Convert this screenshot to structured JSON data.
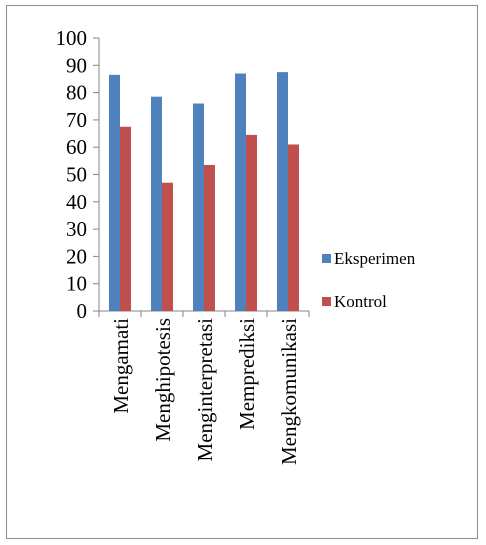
{
  "chart_data": {
    "type": "bar",
    "categories": [
      "Mengamati",
      "Menghipotesis",
      "Menginterpretasi",
      "Memprediksi",
      "Mengkomunikasi"
    ],
    "series": [
      {
        "name": "Eksperimen",
        "color": "#4F81BD",
        "values": [
          86.5,
          78.5,
          76,
          87,
          87.5
        ]
      },
      {
        "name": "Kontrol",
        "color": "#C0504D",
        "values": [
          67.5,
          47,
          53.5,
          64.5,
          61
        ]
      }
    ],
    "ylim": [
      0,
      100
    ],
    "yticks": [
      0,
      10,
      20,
      30,
      40,
      50,
      60,
      70,
      80,
      90,
      100
    ],
    "grid": false,
    "legend_position": "right",
    "title": "",
    "xlabel": "",
    "ylabel": ""
  }
}
